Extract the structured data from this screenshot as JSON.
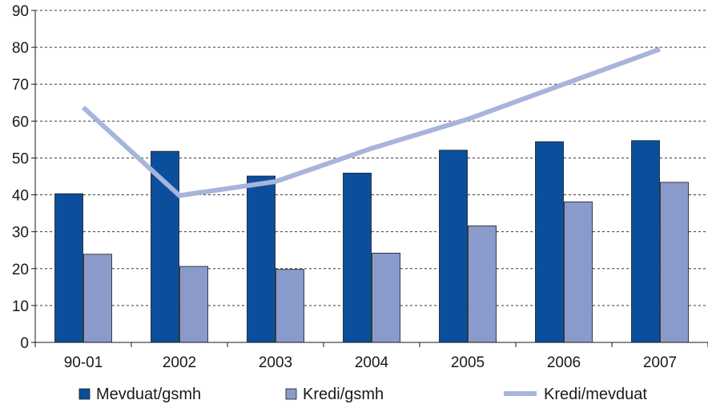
{
  "chart_data": {
    "type": "bar",
    "categories": [
      "90-01",
      "2002",
      "2003",
      "2004",
      "2005",
      "2006",
      "2007"
    ],
    "series": [
      {
        "name": "Mevduat/gsmh",
        "type": "bar",
        "color": "#0b4f9c",
        "values": [
          40.3,
          51.8,
          45.1,
          45.9,
          52.1,
          54.4,
          54.7
        ]
      },
      {
        "name": "Kredi/gsmh",
        "type": "bar",
        "color": "#8a9bcb",
        "values": [
          23.9,
          20.6,
          19.8,
          24.2,
          31.6,
          38.1,
          43.4
        ]
      },
      {
        "name": "Kredi/mevduat",
        "type": "line",
        "color": "#a7b4dc",
        "values": [
          63.7,
          39.8,
          43.6,
          52.6,
          60.5,
          70.0,
          79.5
        ]
      }
    ],
    "yticks": [
      0,
      10,
      20,
      30,
      40,
      50,
      60,
      70,
      80,
      90
    ],
    "ylim": [
      0,
      90
    ],
    "grid": "horizontal dashed",
    "legend_position": "bottom"
  }
}
